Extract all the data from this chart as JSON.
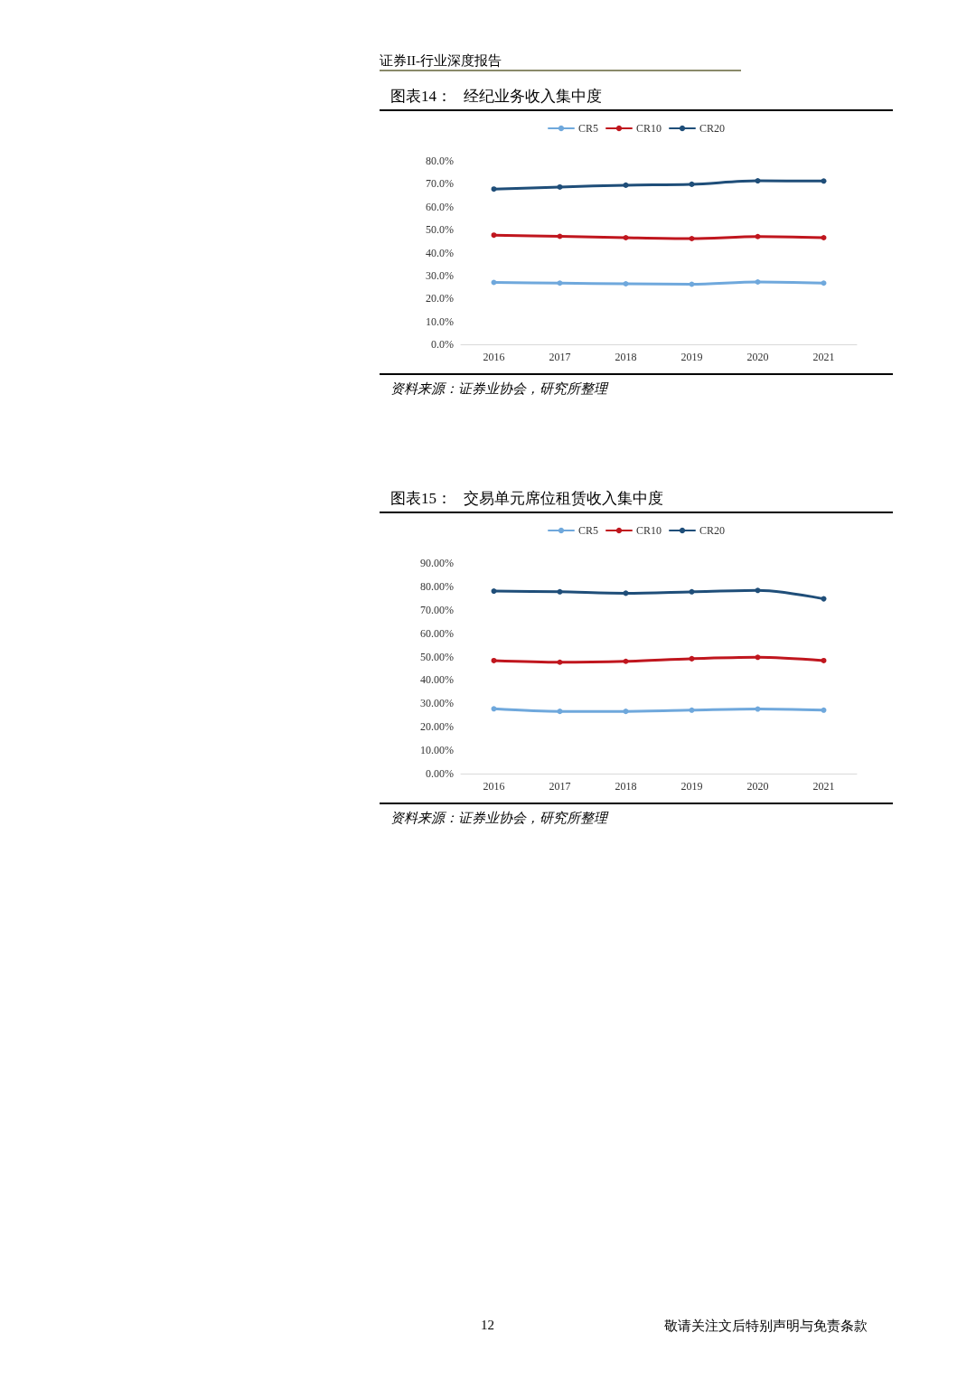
{
  "chart_data": [
    {
      "type": "line",
      "title": "图表14：   经纪业务收入集中度",
      "annotations": [
        "证券II-行业深度报告",
        "资料来源：证券业协会，研究所整理"
      ],
      "categories": [
        "2016",
        "2017",
        "2018",
        "2019",
        "2020",
        "2021"
      ],
      "series": [
        {
          "name": "CR5",
          "color": "#6fa8dc",
          "values": [
            27.0,
            26.7,
            26.4,
            26.2,
            27.2,
            26.7
          ]
        },
        {
          "name": "CR10",
          "color": "#c0161e",
          "values": [
            47.6,
            47.1,
            46.5,
            46.1,
            47.0,
            46.5
          ]
        },
        {
          "name": "CR20",
          "color": "#1f4e79",
          "values": [
            67.7,
            68.6,
            69.4,
            69.8,
            71.3,
            71.2
          ]
        }
      ],
      "ylim": [
        0,
        80
      ],
      "yticks": [
        {
          "value": 0,
          "label": "0.0%"
        },
        {
          "value": 10,
          "label": "10.0%"
        },
        {
          "value": 20,
          "label": "20.0%"
        },
        {
          "value": 30,
          "label": "30.0%"
        },
        {
          "value": 40,
          "label": "40.0%"
        },
        {
          "value": 50,
          "label": "50.0%"
        },
        {
          "value": 60,
          "label": "60.0%"
        },
        {
          "value": 70,
          "label": "70.0%"
        },
        {
          "value": 80,
          "label": "80.0%"
        }
      ],
      "grid": false,
      "legend": "top",
      "marker": "circle",
      "line_style": "solid"
    },
    {
      "type": "line",
      "title": "图表15：   交易单元席位租赁收入集中度",
      "annotations": [
        "资料来源：证券业协会，研究所整理",
        "12",
        "敬请关注文后特别声明与免责条款"
      ],
      "categories": [
        "2016",
        "2017",
        "2018",
        "2019",
        "2020",
        "2021"
      ],
      "series": [
        {
          "name": "CR5",
          "color": "#6fa8dc",
          "values": [
            27.7,
            26.6,
            26.6,
            27.1,
            27.6,
            27.1
          ]
        },
        {
          "name": "CR10",
          "color": "#c0161e",
          "values": [
            48.3,
            47.6,
            48.0,
            49.1,
            49.7,
            48.3
          ]
        },
        {
          "name": "CR20",
          "color": "#1f4e79",
          "values": [
            78.0,
            77.7,
            77.1,
            77.7,
            78.3,
            74.7
          ]
        }
      ],
      "ylim": [
        0,
        90
      ],
      "yticks": [
        {
          "value": 0,
          "label": "0.00%"
        },
        {
          "value": 10,
          "label": "10.00%"
        },
        {
          "value": 20,
          "label": "20.00%"
        },
        {
          "value": 30,
          "label": "30.00%"
        },
        {
          "value": 40,
          "label": "40.00%"
        },
        {
          "value": 50,
          "label": "50.00%"
        },
        {
          "value": 60,
          "label": "60.00%"
        },
        {
          "value": 70,
          "label": "70.00%"
        },
        {
          "value": 80,
          "label": "80.00%"
        },
        {
          "value": 90,
          "label": "90.00%"
        }
      ],
      "grid": false,
      "legend": "top",
      "marker": "circle",
      "line_style": "solid"
    }
  ]
}
